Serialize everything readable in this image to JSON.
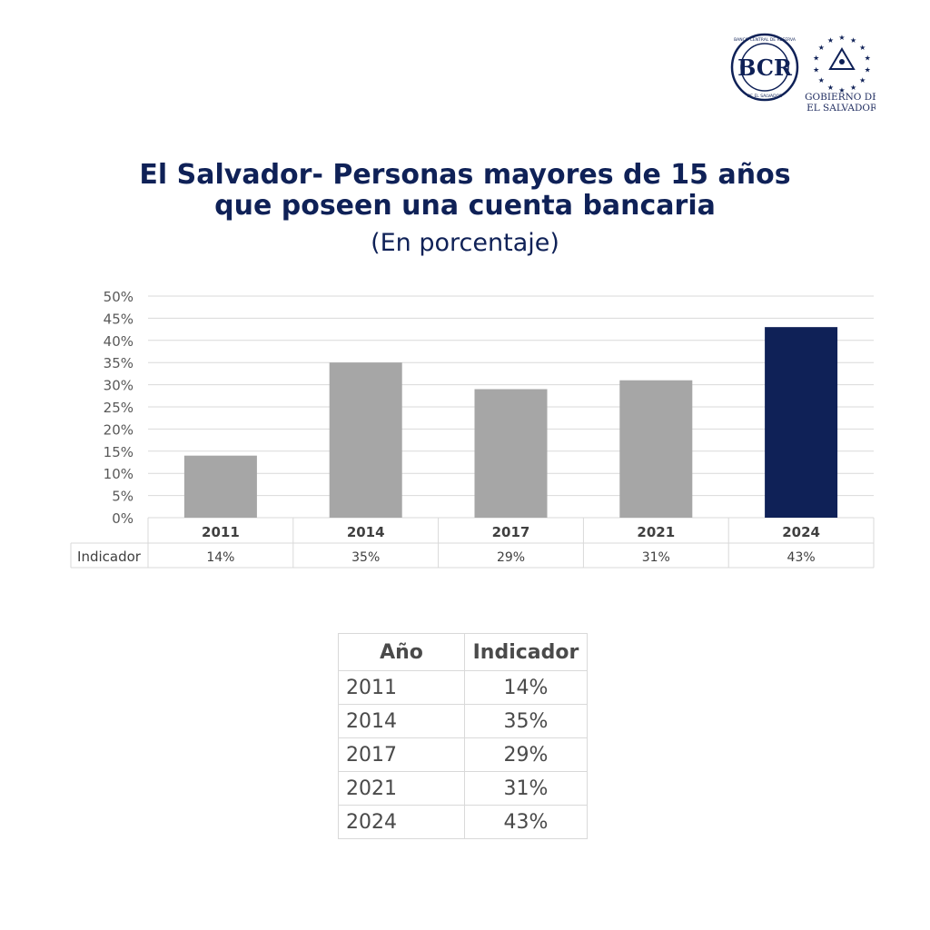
{
  "logos": {
    "bcr_monogram": "BCR",
    "bcr_ring_text": "BANCO CENTRAL DE RESERVA",
    "bcr_ring_bottom": "DE EL SALVADOR",
    "gov_line1": "GOBIERNO DE",
    "gov_line2": "EL SALVADOR"
  },
  "header": {
    "title_line1": "El Salvador- Personas mayores de 15 años",
    "title_line2": "que poseen una cuenta bancaria",
    "subtitle": "(En porcentaje)"
  },
  "chart_data": {
    "type": "bar",
    "categories": [
      "2011",
      "2014",
      "2017",
      "2021",
      "2024"
    ],
    "values": [
      14,
      35,
      29,
      31,
      43
    ],
    "value_labels": [
      "14%",
      "35%",
      "29%",
      "31%",
      "43%"
    ],
    "series": [
      {
        "name": "Indicador",
        "values": [
          14,
          35,
          29,
          31,
          43
        ]
      }
    ],
    "ylim": [
      0,
      50
    ],
    "yticks": [
      "0%",
      "5%",
      "10%",
      "15%",
      "20%",
      "25%",
      "30%",
      "35%",
      "40%",
      "45%",
      "50%"
    ],
    "grid": true,
    "bar_color": "#a6a6a6",
    "highlight_color": "#0f2157",
    "highlight_index": 4
  },
  "table": {
    "headers": [
      "Año",
      "Indicador"
    ],
    "rows": [
      [
        "2011",
        "14%"
      ],
      [
        "2014",
        "35%"
      ],
      [
        "2017",
        "29%"
      ],
      [
        "2021",
        "31%"
      ],
      [
        "2024",
        "43%"
      ]
    ]
  }
}
